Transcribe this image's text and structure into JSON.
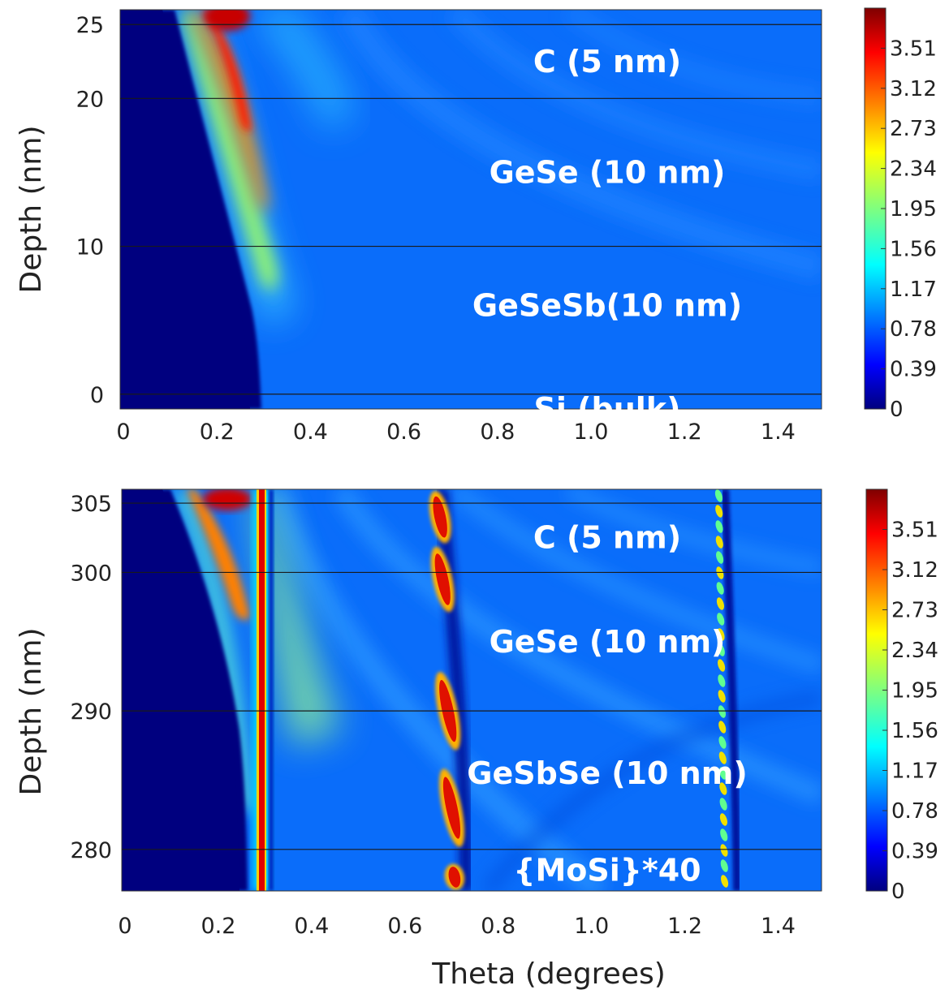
{
  "chart_data": [
    {
      "type": "heatmap",
      "xlabel": "",
      "ylabel": "Depth (nm)",
      "x_ticks": [
        "0",
        "0.2",
        "0.4",
        "0.6",
        "0.8",
        "1.0",
        "1.2",
        "1.4"
      ],
      "x_tick_values": [
        0,
        0.2,
        0.4,
        0.6,
        0.8,
        1.0,
        1.2,
        1.4
      ],
      "xlim": [
        0,
        1.5
      ],
      "y_ticks": [
        "0",
        "10",
        "20",
        "25"
      ],
      "y_tick_values": [
        0,
        10,
        20,
        25
      ],
      "ylim": [
        -1,
        26
      ],
      "layer_boundaries": [
        25,
        20,
        10,
        0
      ],
      "layers": [
        {
          "label": "C (5 nm)",
          "depth": 22.5
        },
        {
          "label": "GeSe (10 nm)",
          "depth": 15
        },
        {
          "label": "GeSeSb(10 nm)",
          "depth": 6
        },
        {
          "label": "Si (bulk)",
          "depth": -1
        }
      ],
      "colorbar": {
        "ticks": [
          "3.51",
          "3.12",
          "2.73",
          "2.34",
          "1.95",
          "1.56",
          "1.17",
          "0.78",
          "0.39",
          "0"
        ],
        "range": [
          0,
          3.9
        ],
        "colormap": "jet"
      },
      "features": {
        "shadow_edge_theta": 0.3,
        "max_peak_theta": 0.25,
        "max_value": 3.9,
        "background_value": 0.85
      }
    },
    {
      "type": "heatmap",
      "xlabel": "Theta (degrees)",
      "ylabel": "Depth (nm)",
      "x_ticks": [
        "0",
        "0.2",
        "0.4",
        "0.6",
        "0.8",
        "1.0",
        "1.2",
        "1.4"
      ],
      "x_tick_values": [
        0,
        0.2,
        0.4,
        0.6,
        0.8,
        1.0,
        1.2,
        1.4
      ],
      "xlim": [
        0,
        1.5
      ],
      "y_ticks": [
        "280",
        "290",
        "300",
        "305"
      ],
      "y_tick_values": [
        280,
        290,
        300,
        305
      ],
      "ylim": [
        277,
        306
      ],
      "layer_boundaries": [
        305,
        300,
        290,
        280
      ],
      "layers": [
        {
          "label": "C (5 nm)",
          "depth": 302.5
        },
        {
          "label": "GeSe (10 nm)",
          "depth": 295
        },
        {
          "label": "GeSbSe (10 nm)",
          "depth": 285.5
        },
        {
          "label": "{MoSi}*40",
          "depth": 278.5
        }
      ],
      "colorbar": {
        "ticks": [
          "3.51",
          "3.12",
          "2.73",
          "2.34",
          "1.95",
          "1.56",
          "1.17",
          "0.78",
          "0.39",
          "0"
        ],
        "range": [
          0,
          3.9
        ],
        "colormap": "jet"
      },
      "features": {
        "shadow_edge_theta": 0.27,
        "bragg_peaks_theta": [
          0.28,
          0.68,
          1.29
        ],
        "max_value": 3.9,
        "background_value": 0.85
      }
    }
  ]
}
